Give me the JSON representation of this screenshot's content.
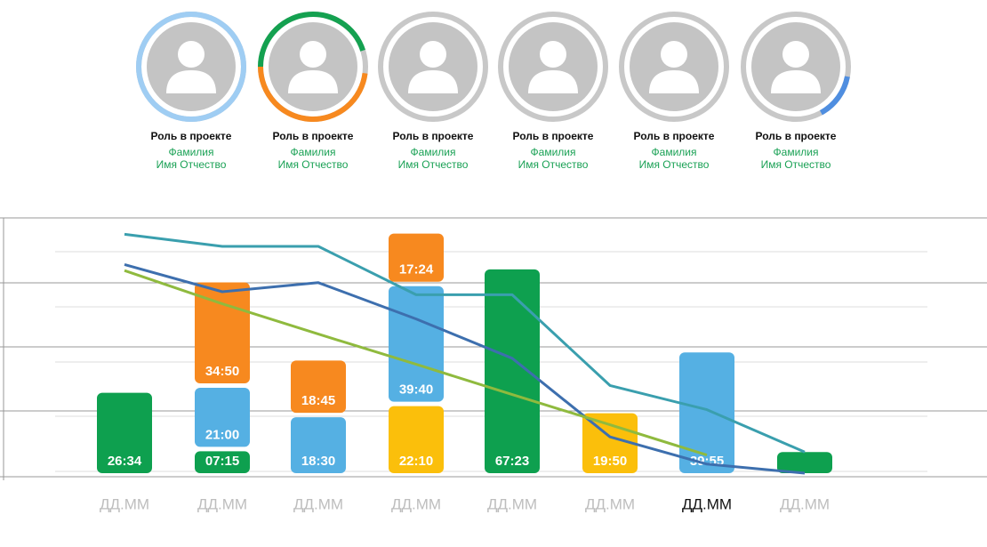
{
  "people": [
    {
      "role": "Роль в проекте",
      "surname": "Фамилия",
      "name": "Имя Отчество",
      "ring": [
        {
          "color": "#9fcdf3",
          "from": 0,
          "to": 1
        }
      ]
    },
    {
      "role": "Роль в проекте",
      "surname": "Фамилия",
      "name": "Имя Отчество",
      "ring": [
        {
          "color": "#f7891f",
          "from": 0.27,
          "to": 0.75
        },
        {
          "color": "#14a150",
          "from": 0.75,
          "to": 1.2
        }
      ]
    },
    {
      "role": "Роль в проекте",
      "surname": "Фамилия",
      "name": "Имя Отчество",
      "ring": []
    },
    {
      "role": "Роль в проекте",
      "surname": "Фамилия",
      "name": "Имя Отчество",
      "ring": []
    },
    {
      "role": "Роль в проекте",
      "surname": "Фамилия",
      "name": "Имя Отчество",
      "ring": []
    },
    {
      "role": "Роль в проекте",
      "surname": "Фамилия",
      "name": "Имя Отчество",
      "ring": [
        {
          "color": "#4f8ee0",
          "from": 0.28,
          "to": 0.42
        }
      ]
    }
  ],
  "chart_data": {
    "type": "bar",
    "stacked": true,
    "categories": [
      "ДД.ММ",
      "ДД.ММ",
      "ДД.ММ",
      "ДД.ММ",
      "ДД.ММ",
      "ДД.ММ",
      "ДД.ММ",
      "ДД.ММ"
    ],
    "active_category": 6,
    "ylim": [
      0,
      80
    ],
    "series": [
      {
        "type": "bar",
        "color": "#0ea04f",
        "values": [
          26.5667,
          7.25,
          null,
          null,
          67.3833,
          null,
          null,
          7
        ],
        "value_labels": [
          "26:34",
          "07:15",
          null,
          null,
          "67:23",
          null,
          null,
          null
        ]
      },
      {
        "type": "bar",
        "color": "#fbbf0b",
        "values": [
          null,
          null,
          null,
          22.1667,
          null,
          19.8333,
          null,
          null
        ],
        "value_labels": [
          null,
          null,
          null,
          "22:10",
          null,
          "19:50",
          null,
          null
        ]
      },
      {
        "type": "bar",
        "color": "#55b0e3",
        "values": [
          null,
          21,
          18.5,
          39.6667,
          null,
          null,
          39.9167,
          null
        ],
        "value_labels": [
          null,
          "21:00",
          "18:30",
          "39:40",
          null,
          null,
          "39:55",
          null
        ]
      },
      {
        "type": "bar",
        "color": "#f7891f",
        "values": [
          null,
          34.8333,
          18.75,
          17.4,
          null,
          null,
          null,
          null
        ],
        "value_labels": [
          null,
          "34:50",
          "18:45",
          "17:24",
          null,
          null,
          null,
          null
        ]
      },
      {
        "type": "line",
        "color": "#3a9fae",
        "values": [
          79,
          75,
          75,
          59,
          59,
          29,
          21,
          7
        ]
      },
      {
        "type": "line",
        "color": "#3d6fae",
        "values": [
          69,
          60,
          63,
          51,
          38,
          12,
          3,
          0
        ]
      },
      {
        "type": "line",
        "color": "#8fba3e",
        "values": [
          67,
          56,
          46,
          36,
          26,
          16,
          6,
          null
        ]
      }
    ]
  }
}
